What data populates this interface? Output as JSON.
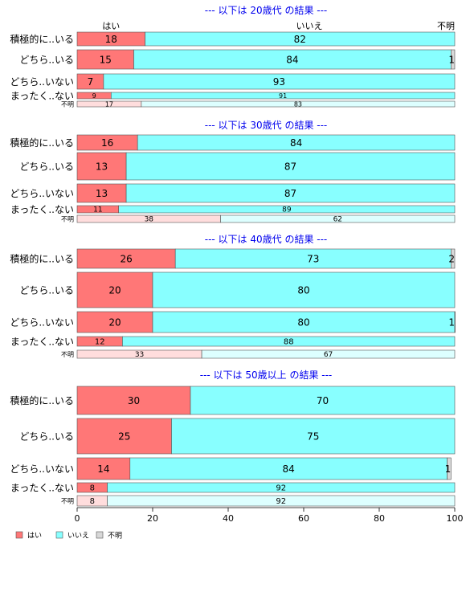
{
  "chart_data": {
    "type": "bar",
    "orientation": "horizontal",
    "stacked": true,
    "column_headers": [
      "はい",
      "いいえ",
      "不明"
    ],
    "xlim": [
      0,
      100
    ],
    "xticks": [
      "0",
      "20",
      "40",
      "60",
      "80",
      "100"
    ],
    "legend": {
      "placement": "bottom-left",
      "entries": [
        {
          "name": "はい",
          "color": "#ff7777"
        },
        {
          "name": "いいえ",
          "color": "#88ffff"
        },
        {
          "name": "不明",
          "color": "#d8d8d8"
        }
      ]
    },
    "colors": {
      "yes": "#ff7777",
      "no": "#88ffff",
      "unknown": "#d8d8d8",
      "yes_light": "#ffdddd",
      "no_light": "#ddffff",
      "title": "#0000ee",
      "stroke": "#555555"
    },
    "panels": [
      {
        "title": "--- 以下は 20歳代 の結果 ---",
        "rows": [
          {
            "label": "積極的に..いる",
            "values": [
              18,
              82,
              0
            ],
            "labels": [
              "18",
              "82",
              ""
            ]
          },
          {
            "label": "どちら..いる",
            "values": [
              15,
              84,
              1
            ],
            "labels": [
              "15",
              "84",
              "1"
            ]
          },
          {
            "label": "どちら..いない",
            "values": [
              7,
              93,
              0
            ],
            "labels": [
              "7",
              "93",
              ""
            ]
          },
          {
            "label": "まったく..ない",
            "values": [
              9,
              91,
              0
            ],
            "labels": [
              "9",
              "91",
              ""
            ]
          },
          {
            "label": "不明",
            "values": [
              17,
              83,
              0
            ],
            "labels": [
              "17",
              "83",
              ""
            ],
            "light": true
          }
        ]
      },
      {
        "title": "--- 以下は 30歳代 の結果 ---",
        "rows": [
          {
            "label": "積極的に..いる",
            "values": [
              16,
              84,
              0
            ],
            "labels": [
              "16",
              "84",
              ""
            ]
          },
          {
            "label": "どちら..いる",
            "values": [
              13,
              87,
              0
            ],
            "labels": [
              "13",
              "87",
              ""
            ]
          },
          {
            "label": "どちら..いない",
            "values": [
              13,
              87,
              0
            ],
            "labels": [
              "13",
              "87",
              ""
            ]
          },
          {
            "label": "まったく..ない",
            "values": [
              11,
              89,
              0
            ],
            "labels": [
              "11",
              "89",
              ""
            ]
          },
          {
            "label": "不明",
            "values": [
              38,
              62,
              0
            ],
            "labels": [
              "38",
              "62",
              ""
            ],
            "light": true
          }
        ]
      },
      {
        "title": "--- 以下は 40歳代 の結果 ---",
        "rows": [
          {
            "label": "積極的に..いる",
            "values": [
              26,
              73,
              2
            ],
            "labels": [
              "26",
              "73",
              "2"
            ]
          },
          {
            "label": "どちら..いる",
            "values": [
              20,
              80,
              0
            ],
            "labels": [
              "20",
              "80",
              ""
            ]
          },
          {
            "label": "どちら..いない",
            "values": [
              20,
              80,
              1
            ],
            "labels": [
              "20",
              "80",
              "1"
            ]
          },
          {
            "label": "まったく..ない",
            "values": [
              12,
              88,
              0
            ],
            "labels": [
              "12",
              "88",
              ""
            ]
          },
          {
            "label": "不明",
            "values": [
              33,
              67,
              0
            ],
            "labels": [
              "33",
              "67",
              ""
            ],
            "light": true
          }
        ]
      },
      {
        "title": "--- 以下は 50歳以上 の結果 ---",
        "rows": [
          {
            "label": "積極的に..いる",
            "values": [
              30,
              70,
              0
            ],
            "labels": [
              "30",
              "70",
              ""
            ]
          },
          {
            "label": "どちら..いる",
            "values": [
              25,
              75,
              0
            ],
            "labels": [
              "25",
              "75",
              ""
            ]
          },
          {
            "label": "どちら..いない",
            "values": [
              14,
              84,
              1
            ],
            "labels": [
              "14",
              "84",
              "1"
            ]
          },
          {
            "label": "まったく..ない",
            "values": [
              8,
              92,
              0
            ],
            "labels": [
              "8",
              "92",
              ""
            ]
          },
          {
            "label": "不明",
            "values": [
              8,
              92,
              0
            ],
            "labels": [
              "8",
              "92",
              ""
            ],
            "light": true
          }
        ]
      }
    ]
  }
}
